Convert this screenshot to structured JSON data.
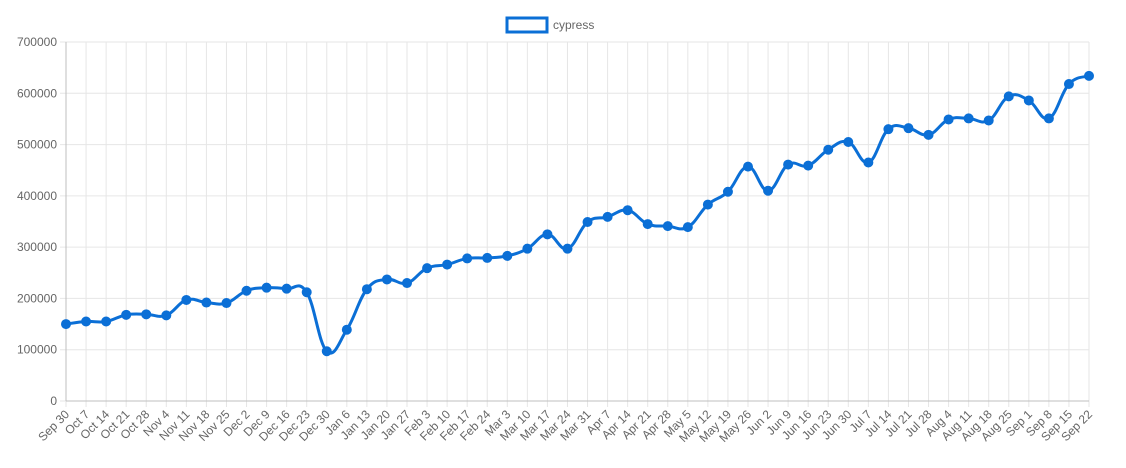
{
  "chart_data": {
    "type": "line",
    "title": "",
    "xlabel": "",
    "ylabel": "",
    "legend_position": "top-center",
    "grid": true,
    "ylim": [
      0,
      700000
    ],
    "yticks": [
      "0",
      "100000",
      "200000",
      "300000",
      "400000",
      "500000",
      "600000",
      "700000"
    ],
    "categories": [
      "Sep 30",
      "Oct 7",
      "Oct 14",
      "Oct 21",
      "Oct 28",
      "Nov 4",
      "Nov 11",
      "Nov 18",
      "Nov 25",
      "Dec 2",
      "Dec 9",
      "Dec 16",
      "Dec 23",
      "Dec 30",
      "Jan 6",
      "Jan 13",
      "Jan 20",
      "Jan 27",
      "Feb 3",
      "Feb 10",
      "Feb 17",
      "Feb 24",
      "Mar 3",
      "Mar 10",
      "Mar 17",
      "Mar 24",
      "Mar 31",
      "Apr 7",
      "Apr 14",
      "Apr 21",
      "Apr 28",
      "May 5",
      "May 12",
      "May 19",
      "May 26",
      "Jun 2",
      "Jun 9",
      "Jun 16",
      "Jun 23",
      "Jun 30",
      "Jul 7",
      "Jul 14",
      "Jul 21",
      "Jul 28",
      "Aug 4",
      "Aug 11",
      "Aug 18",
      "Aug 25",
      "Sep 1",
      "Sep 8",
      "Sep 15",
      "Sep 22"
    ],
    "series": [
      {
        "name": "cypress",
        "color": "#0b6fd6",
        "values": [
          150000,
          155000,
          155000,
          168000,
          169000,
          167000,
          197000,
          192000,
          191000,
          215000,
          221000,
          219000,
          212000,
          97000,
          139000,
          218000,
          237000,
          230000,
          259000,
          266000,
          278000,
          279000,
          283000,
          297000,
          325000,
          297000,
          349000,
          359000,
          372000,
          345000,
          341000,
          339000,
          383000,
          408000,
          457000,
          410000,
          461000,
          459000,
          490000,
          505000,
          465000,
          530000,
          532000,
          519000,
          549000,
          551000,
          547000,
          594000,
          586000,
          551000,
          618000,
          634000
        ]
      }
    ]
  }
}
